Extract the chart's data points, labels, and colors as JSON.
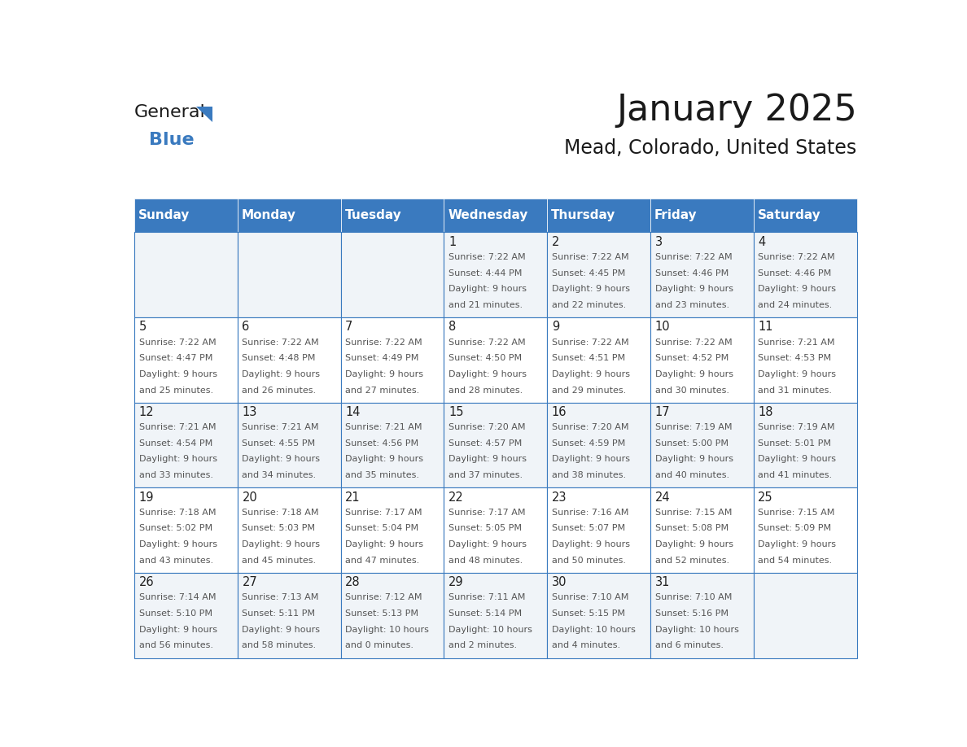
{
  "title": "January 2025",
  "subtitle": "Mead, Colorado, United States",
  "header_bg": "#3a7abf",
  "header_text_color": "#ffffff",
  "cell_bg_even": "#f0f4f8",
  "cell_bg_odd": "#ffffff",
  "day_names": [
    "Sunday",
    "Monday",
    "Tuesday",
    "Wednesday",
    "Thursday",
    "Friday",
    "Saturday"
  ],
  "days": [
    {
      "date": 1,
      "col": 3,
      "row": 0,
      "sunrise": "7:22 AM",
      "sunset": "4:44 PM",
      "daylight_h": "9 hours",
      "daylight_m": "21 minutes."
    },
    {
      "date": 2,
      "col": 4,
      "row": 0,
      "sunrise": "7:22 AM",
      "sunset": "4:45 PM",
      "daylight_h": "9 hours",
      "daylight_m": "22 minutes."
    },
    {
      "date": 3,
      "col": 5,
      "row": 0,
      "sunrise": "7:22 AM",
      "sunset": "4:46 PM",
      "daylight_h": "9 hours",
      "daylight_m": "23 minutes."
    },
    {
      "date": 4,
      "col": 6,
      "row": 0,
      "sunrise": "7:22 AM",
      "sunset": "4:46 PM",
      "daylight_h": "9 hours",
      "daylight_m": "24 minutes."
    },
    {
      "date": 5,
      "col": 0,
      "row": 1,
      "sunrise": "7:22 AM",
      "sunset": "4:47 PM",
      "daylight_h": "9 hours",
      "daylight_m": "25 minutes."
    },
    {
      "date": 6,
      "col": 1,
      "row": 1,
      "sunrise": "7:22 AM",
      "sunset": "4:48 PM",
      "daylight_h": "9 hours",
      "daylight_m": "26 minutes."
    },
    {
      "date": 7,
      "col": 2,
      "row": 1,
      "sunrise": "7:22 AM",
      "sunset": "4:49 PM",
      "daylight_h": "9 hours",
      "daylight_m": "27 minutes."
    },
    {
      "date": 8,
      "col": 3,
      "row": 1,
      "sunrise": "7:22 AM",
      "sunset": "4:50 PM",
      "daylight_h": "9 hours",
      "daylight_m": "28 minutes."
    },
    {
      "date": 9,
      "col": 4,
      "row": 1,
      "sunrise": "7:22 AM",
      "sunset": "4:51 PM",
      "daylight_h": "9 hours",
      "daylight_m": "29 minutes."
    },
    {
      "date": 10,
      "col": 5,
      "row": 1,
      "sunrise": "7:22 AM",
      "sunset": "4:52 PM",
      "daylight_h": "9 hours",
      "daylight_m": "30 minutes."
    },
    {
      "date": 11,
      "col": 6,
      "row": 1,
      "sunrise": "7:21 AM",
      "sunset": "4:53 PM",
      "daylight_h": "9 hours",
      "daylight_m": "31 minutes."
    },
    {
      "date": 12,
      "col": 0,
      "row": 2,
      "sunrise": "7:21 AM",
      "sunset": "4:54 PM",
      "daylight_h": "9 hours",
      "daylight_m": "33 minutes."
    },
    {
      "date": 13,
      "col": 1,
      "row": 2,
      "sunrise": "7:21 AM",
      "sunset": "4:55 PM",
      "daylight_h": "9 hours",
      "daylight_m": "34 minutes."
    },
    {
      "date": 14,
      "col": 2,
      "row": 2,
      "sunrise": "7:21 AM",
      "sunset": "4:56 PM",
      "daylight_h": "9 hours",
      "daylight_m": "35 minutes."
    },
    {
      "date": 15,
      "col": 3,
      "row": 2,
      "sunrise": "7:20 AM",
      "sunset": "4:57 PM",
      "daylight_h": "9 hours",
      "daylight_m": "37 minutes."
    },
    {
      "date": 16,
      "col": 4,
      "row": 2,
      "sunrise": "7:20 AM",
      "sunset": "4:59 PM",
      "daylight_h": "9 hours",
      "daylight_m": "38 minutes."
    },
    {
      "date": 17,
      "col": 5,
      "row": 2,
      "sunrise": "7:19 AM",
      "sunset": "5:00 PM",
      "daylight_h": "9 hours",
      "daylight_m": "40 minutes."
    },
    {
      "date": 18,
      "col": 6,
      "row": 2,
      "sunrise": "7:19 AM",
      "sunset": "5:01 PM",
      "daylight_h": "9 hours",
      "daylight_m": "41 minutes."
    },
    {
      "date": 19,
      "col": 0,
      "row": 3,
      "sunrise": "7:18 AM",
      "sunset": "5:02 PM",
      "daylight_h": "9 hours",
      "daylight_m": "43 minutes."
    },
    {
      "date": 20,
      "col": 1,
      "row": 3,
      "sunrise": "7:18 AM",
      "sunset": "5:03 PM",
      "daylight_h": "9 hours",
      "daylight_m": "45 minutes."
    },
    {
      "date": 21,
      "col": 2,
      "row": 3,
      "sunrise": "7:17 AM",
      "sunset": "5:04 PM",
      "daylight_h": "9 hours",
      "daylight_m": "47 minutes."
    },
    {
      "date": 22,
      "col": 3,
      "row": 3,
      "sunrise": "7:17 AM",
      "sunset": "5:05 PM",
      "daylight_h": "9 hours",
      "daylight_m": "48 minutes."
    },
    {
      "date": 23,
      "col": 4,
      "row": 3,
      "sunrise": "7:16 AM",
      "sunset": "5:07 PM",
      "daylight_h": "9 hours",
      "daylight_m": "50 minutes."
    },
    {
      "date": 24,
      "col": 5,
      "row": 3,
      "sunrise": "7:15 AM",
      "sunset": "5:08 PM",
      "daylight_h": "9 hours",
      "daylight_m": "52 minutes."
    },
    {
      "date": 25,
      "col": 6,
      "row": 3,
      "sunrise": "7:15 AM",
      "sunset": "5:09 PM",
      "daylight_h": "9 hours",
      "daylight_m": "54 minutes."
    },
    {
      "date": 26,
      "col": 0,
      "row": 4,
      "sunrise": "7:14 AM",
      "sunset": "5:10 PM",
      "daylight_h": "9 hours",
      "daylight_m": "56 minutes."
    },
    {
      "date": 27,
      "col": 1,
      "row": 4,
      "sunrise": "7:13 AM",
      "sunset": "5:11 PM",
      "daylight_h": "9 hours",
      "daylight_m": "58 minutes."
    },
    {
      "date": 28,
      "col": 2,
      "row": 4,
      "sunrise": "7:12 AM",
      "sunset": "5:13 PM",
      "daylight_h": "10 hours",
      "daylight_m": "0 minutes."
    },
    {
      "date": 29,
      "col": 3,
      "row": 4,
      "sunrise": "7:11 AM",
      "sunset": "5:14 PM",
      "daylight_h": "10 hours",
      "daylight_m": "2 minutes."
    },
    {
      "date": 30,
      "col": 4,
      "row": 4,
      "sunrise": "7:10 AM",
      "sunset": "5:15 PM",
      "daylight_h": "10 hours",
      "daylight_m": "4 minutes."
    },
    {
      "date": 31,
      "col": 5,
      "row": 4,
      "sunrise": "7:10 AM",
      "sunset": "5:16 PM",
      "daylight_h": "10 hours",
      "daylight_m": "6 minutes."
    }
  ],
  "num_rows": 5,
  "logo_general_color": "#1a1a1a",
  "logo_blue_color": "#3a7abf",
  "logo_triangle_color": "#3a7abf",
  "title_color": "#1a1a1a",
  "subtitle_color": "#1a1a1a",
  "text_color": "#555555",
  "date_num_color": "#222222",
  "title_fontsize": 32,
  "subtitle_fontsize": 17,
  "header_fontsize": 11,
  "date_fontsize": 10.5,
  "info_fontsize": 8.0,
  "logo_fontsize": 16
}
